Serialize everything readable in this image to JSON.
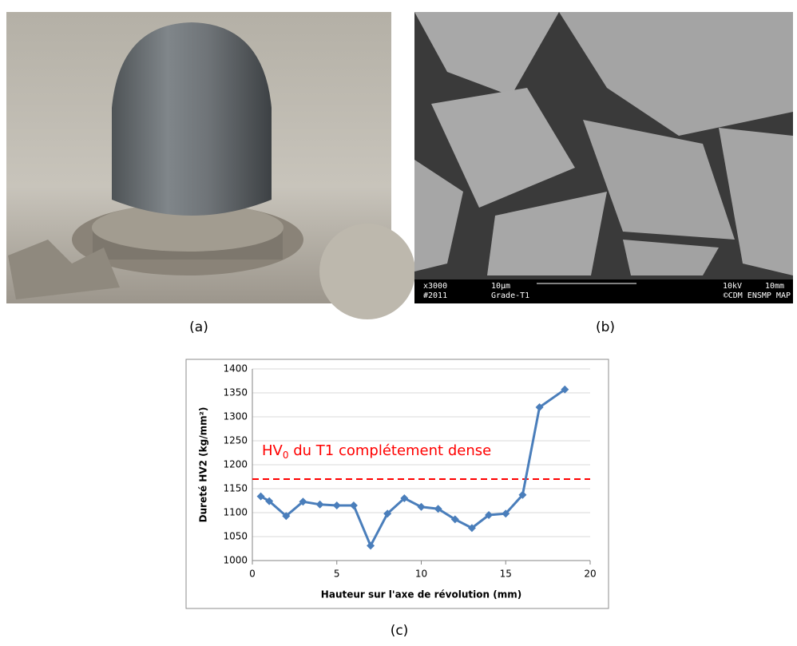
{
  "figure": {
    "panel_labels": [
      "(a)",
      "(b)",
      "(c)"
    ],
    "sem_bar": {
      "mag": "x3000",
      "id": "#2011",
      "scale": "10μm",
      "sample": "Grade-T1",
      "kv": "10kV",
      "wd": "10mm",
      "lab": "©CDM ENSMP MAP"
    }
  },
  "chart_data": {
    "type": "line",
    "x_label": "Hauteur sur l'axe de révolution (mm)",
    "y_label": "Dureté HV2 (kg/mm²)",
    "x": [
      0.5,
      1,
      2,
      3,
      4,
      5,
      6,
      7,
      8,
      9,
      10,
      11,
      12,
      13,
      14,
      15,
      16,
      17,
      18.5
    ],
    "series": [
      {
        "color": "#4a7ebb",
        "values": [
          1134,
          1124,
          1093,
          1123,
          1117,
          1115,
          1115,
          1031,
          1098,
          1130,
          1112,
          1108,
          1086,
          1068,
          1095,
          1098,
          1137,
          1320,
          1357
        ]
      }
    ],
    "xlim": [
      0,
      20
    ],
    "xticks": [
      0,
      5,
      10,
      15,
      20
    ],
    "ylim": [
      1000,
      1400
    ],
    "yticks": [
      1000,
      1050,
      1100,
      1150,
      1200,
      1250,
      1300,
      1350,
      1400
    ],
    "grid": true,
    "reference_line": {
      "value": 1170,
      "color": "#ff0000",
      "style": "dashed"
    },
    "annotation": {
      "text": "HV",
      "subscript": "0",
      "rest": " du T1 complétement dense",
      "color": "#ff0000"
    }
  }
}
